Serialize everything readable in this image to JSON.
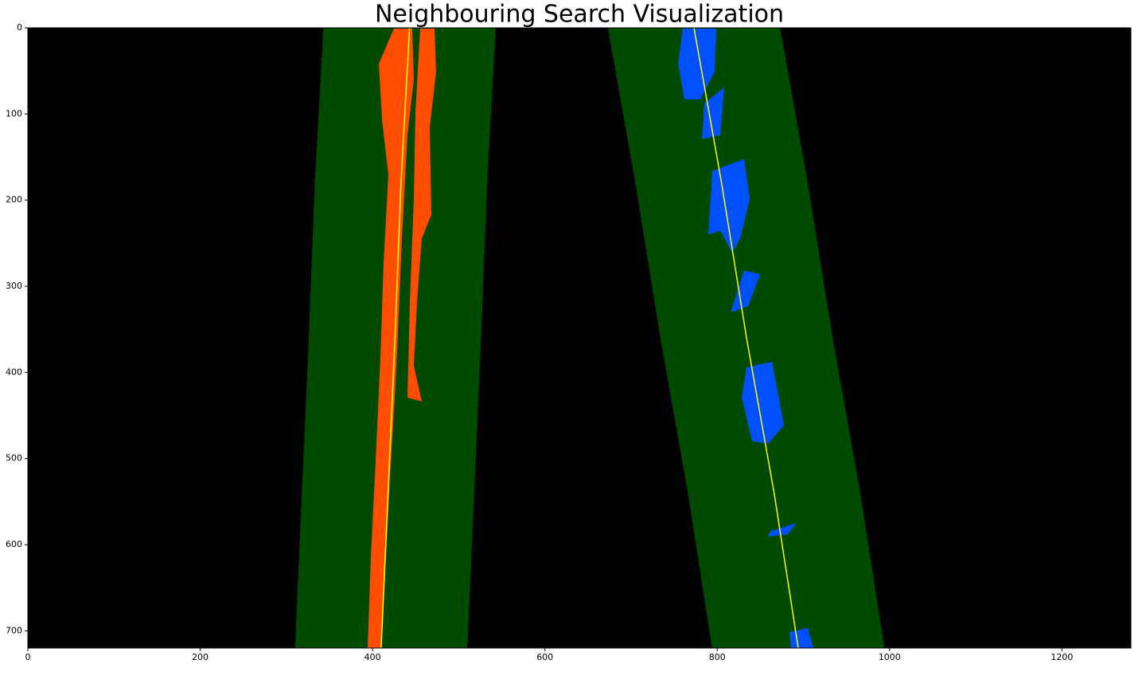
{
  "chart_data": {
    "type": "image",
    "title": "Neighbouring Search Visualization",
    "xlim": [
      0,
      1280
    ],
    "ylim": [
      720,
      0
    ],
    "xticks": [
      0,
      200,
      400,
      600,
      800,
      1000,
      1200
    ],
    "yticks": [
      0,
      100,
      200,
      300,
      400,
      500,
      600,
      700
    ],
    "background": "#000000",
    "band_color": "#004a00",
    "series": [
      {
        "color": "#ffff00",
        "x": [
          443,
          433,
          426,
          418,
          410
        ],
        "values": [
          0,
          180,
          360,
          540,
          720
        ]
      },
      {
        "color": "#ffff00",
        "x": [
          773,
          805,
          834,
          866,
          894
        ],
        "values": [
          0,
          180,
          360,
          540,
          720
        ]
      }
    ]
  }
}
